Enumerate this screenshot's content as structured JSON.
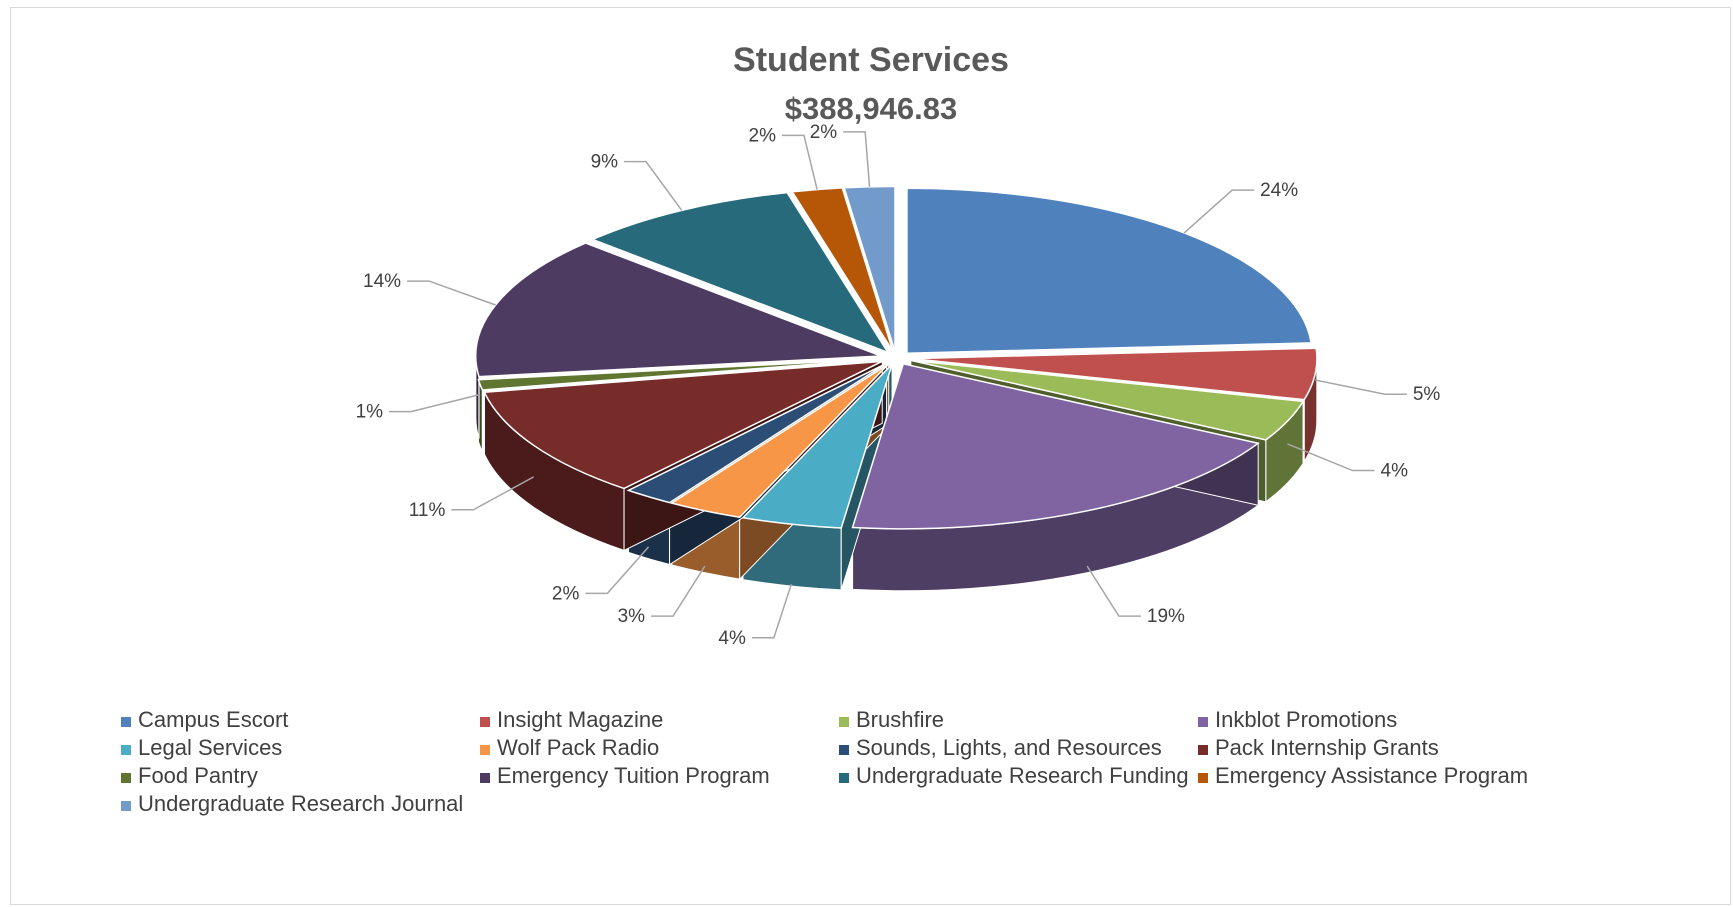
{
  "chart_data": {
    "type": "pie",
    "style": "3d-exploded",
    "title": "Student Services",
    "subtitle": "$388,946.83",
    "legend_position": "bottom",
    "slices": [
      {
        "label": "Campus Escort",
        "value": 24,
        "display": "24%",
        "color": "#4f81bd"
      },
      {
        "label": "Insight Magazine",
        "value": 5,
        "display": "5%",
        "color": "#c0504d"
      },
      {
        "label": "Brushfire",
        "value": 4,
        "display": "4%",
        "color": "#9bbb59"
      },
      {
        "label": "Inkblot Promotions",
        "value": 19,
        "display": "19%",
        "color": "#8064a2"
      },
      {
        "label": "Legal Services",
        "value": 4,
        "display": "4%",
        "color": "#4bacc6"
      },
      {
        "label": "Wolf Pack Radio",
        "value": 3,
        "display": "3%",
        "color": "#f79646"
      },
      {
        "label": "Sounds, Lights, and Resources",
        "value": 2,
        "display": "2%",
        "color": "#2c4d75"
      },
      {
        "label": "Pack Internship Grants",
        "value": 11,
        "display": "11%",
        "color": "#772c2a"
      },
      {
        "label": "Food Pantry",
        "value": 1,
        "display": "1%",
        "color": "#5f7530"
      },
      {
        "label": "Emergency Tuition Program",
        "value": 14,
        "display": "14%",
        "color": "#4d3b62"
      },
      {
        "label": "Undergraduate Research Funding",
        "value": 9,
        "display": "9%",
        "color": "#276a7c"
      },
      {
        "label": "Emergency Assistance Program",
        "value": 2,
        "display": "2%",
        "color": "#b65708"
      },
      {
        "label": "Undergraduate Research Journal",
        "value": 2,
        "display": "2%",
        "color": "#729aca"
      }
    ]
  }
}
